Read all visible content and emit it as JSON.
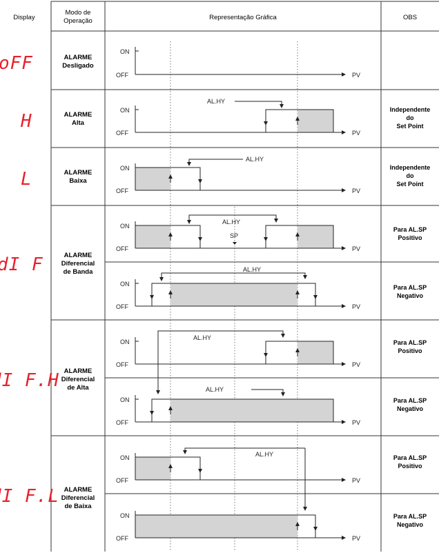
{
  "headers": {
    "display": "Display",
    "modo": [
      "Modo de",
      "Operação"
    ],
    "grafico": "Representação Gráfica",
    "obs": "OBS"
  },
  "axis": {
    "on": "ON",
    "off": "OFF",
    "pv": "PV",
    "hyst": "AL.HY",
    "sp": "SP"
  },
  "rows": [
    {
      "display": "oFF",
      "modo": [
        "ALARME",
        "Desligado"
      ],
      "obs": []
    },
    {
      "display": "H",
      "modo": [
        "ALARME",
        "Alta"
      ],
      "obs": [
        "Independente",
        "do",
        "Set Point"
      ]
    },
    {
      "display": "L",
      "modo": [
        "ALARME",
        "Baixa"
      ],
      "obs": [
        "Independente",
        "do",
        "Set Point"
      ]
    },
    {
      "display": "dI F",
      "modo": [
        "ALARME",
        "Diferencial",
        "de Banda"
      ],
      "obs_pos": [
        "Para AL.SP",
        "Positivo"
      ],
      "obs_neg": [
        "Para AL.SP",
        "Negativo"
      ]
    },
    {
      "display": "dI F.H",
      "modo": [
        "ALARME",
        "Diferencial",
        "de Alta"
      ],
      "obs_pos": [
        "Para AL.SP",
        "Positivo"
      ],
      "obs_neg": [
        "Para AL.SP",
        "Negativo"
      ]
    },
    {
      "display": "dI F.L",
      "modo": [
        "ALARME",
        "Diferencial",
        "de Baixa"
      ],
      "obs_pos": [
        "Para AL.SP",
        "Positivo"
      ],
      "obs_neg": [
        "Para AL.SP",
        "Negativo"
      ]
    }
  ],
  "colors": {
    "display": "#e8212b",
    "shade": "#d4d4d4",
    "line": "#222222"
  }
}
